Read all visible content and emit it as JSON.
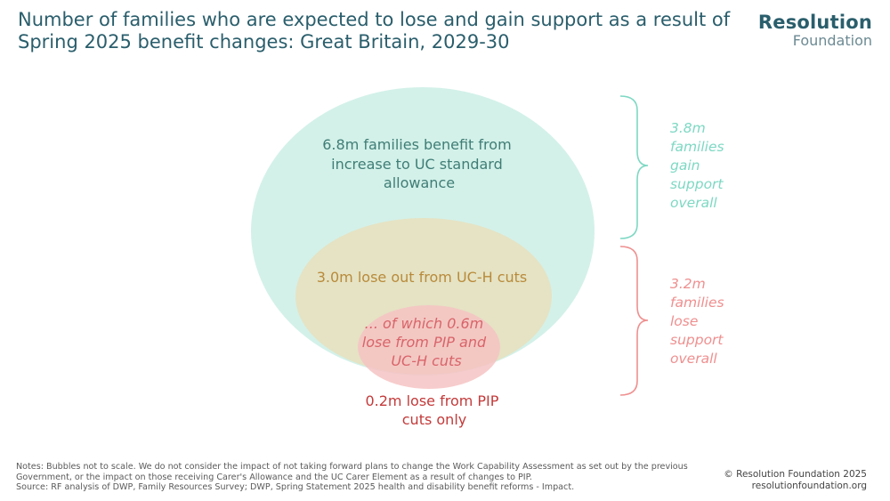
{
  "title": "Number of families who are expected to lose and gain support as a result of Spring 2025 benefit changes: Great Britain, 2029-30",
  "logo": {
    "line1": "Resolution",
    "line2": "Foundation"
  },
  "colors": {
    "outer_fill": "#d3f1e9",
    "outer_text": "#3f7d76",
    "middle_fill": "#e6e2c0",
    "middle_text": "#b98a3a",
    "inner_fill": "#f6c3c3",
    "inner_text": "#d9646a",
    "gain_bracket": "#7dd8c3",
    "lose_bracket": "#ef8f8f",
    "pip_only_text": "#c43a3a"
  },
  "bubbles": {
    "outer": {
      "label": [
        "6.8m families benefit from",
        "increase to UC standard",
        "allowance"
      ]
    },
    "middle": {
      "label": [
        "3.0m lose out from UC-H cuts"
      ]
    },
    "inner": {
      "label": [
        "... of which 0.6m",
        "lose from PIP and",
        "UC-H cuts"
      ]
    },
    "outside": {
      "label": [
        "0.2m lose from PIP",
        "cuts only"
      ]
    }
  },
  "brackets": {
    "gain": {
      "label": [
        "3.8m",
        "families",
        "gain",
        "support",
        "overall"
      ]
    },
    "lose": {
      "label": [
        "3.2m",
        "families",
        "lose",
        "support",
        "overall"
      ]
    }
  },
  "notes": [
    "Notes: Bubbles not to scale. We do not consider the impact of not taking forward plans to change the Work Capability Assessment as set out by the previous",
    "Government, or the impact on those receiving Carer's Allowance and the UC Carer Element as a result of changes to PIP.",
    "Source: RF analysis of DWP, Family Resources Survey; DWP, Spring Statement 2025 health and disability benefit reforms - Impact."
  ],
  "copyright": [
    "© Resolution Foundation 2025",
    "resolutionfoundation.org"
  ]
}
